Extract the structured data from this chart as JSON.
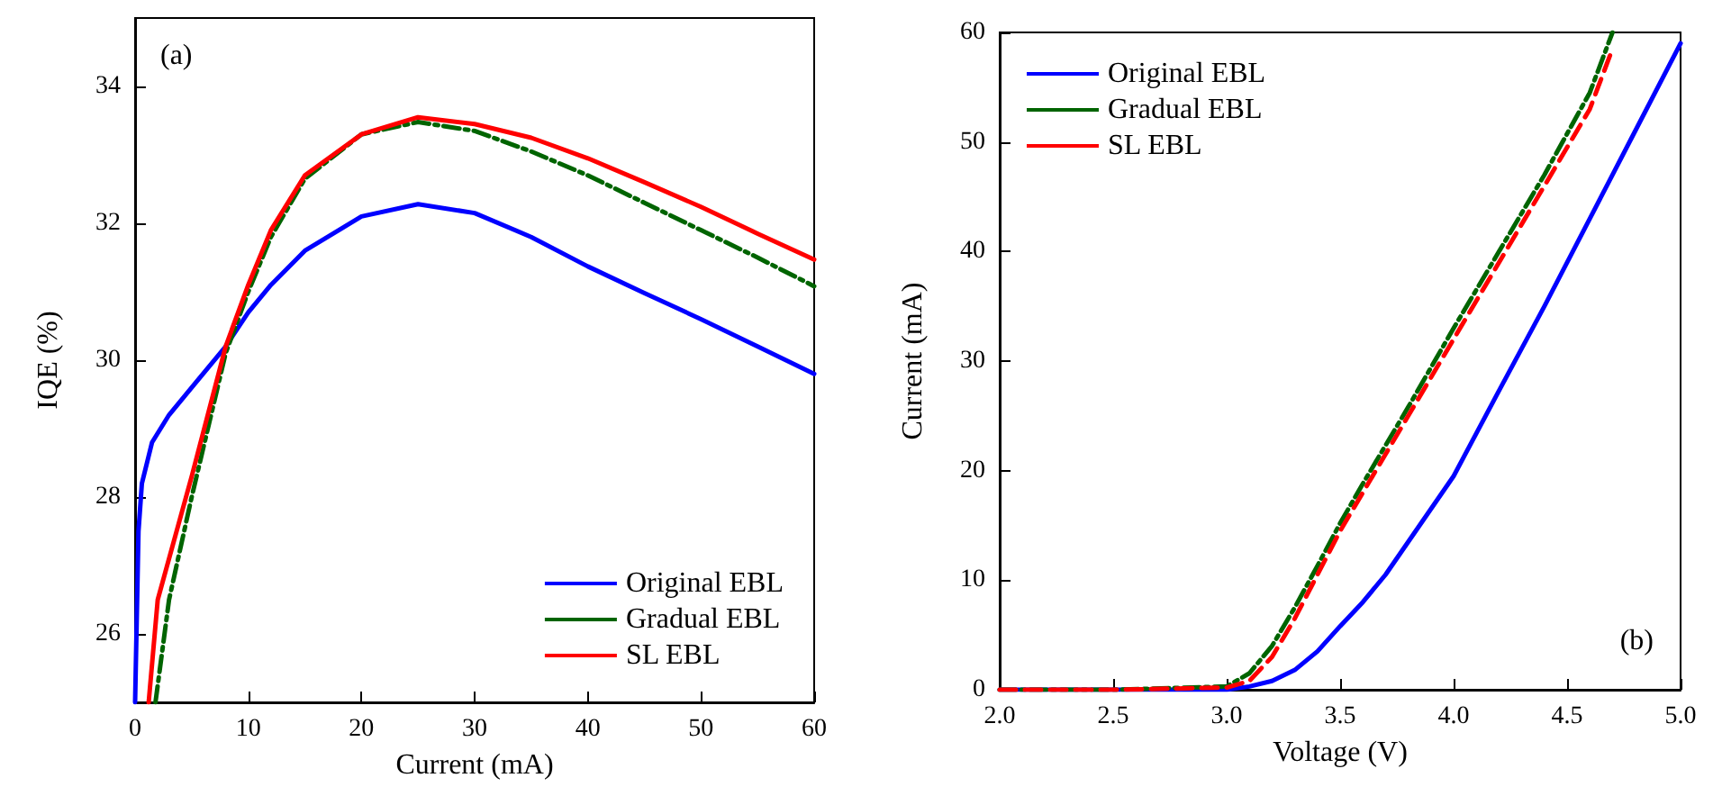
{
  "chart_data": [
    {
      "type": "line",
      "xlabel": "Current (mA)",
      "ylabel": "IQE (%)",
      "annotations": [
        "(a)"
      ],
      "xlim": [
        0,
        60
      ],
      "xticks": [
        0,
        10,
        20,
        30,
        40,
        50,
        60
      ],
      "ylim": [
        25,
        35
      ],
      "yticks": [
        26,
        28,
        30,
        32,
        34
      ],
      "grid": false,
      "legend": "bottom right",
      "marker": "none",
      "series": [
        {
          "name": "Original EBL",
          "color": "#0000ff",
          "line_style": "solid",
          "x": [
            0,
            0.3,
            0.6,
            1.5,
            3,
            5,
            8,
            10,
            12,
            15,
            20,
            25,
            30,
            35,
            40,
            45,
            50,
            55,
            60
          ],
          "values": [
            25,
            27.5,
            28.2,
            28.8,
            29.2,
            29.6,
            30.2,
            30.7,
            31.1,
            31.6,
            32.1,
            32.28,
            32.15,
            31.8,
            31.37,
            30.98,
            30.6,
            30.2,
            29.8
          ]
        },
        {
          "name": "Gradual EBL",
          "color": "#006400",
          "line_style": "dashdot",
          "x": [
            1.8,
            3,
            5,
            8,
            10,
            12,
            15,
            20,
            25,
            30,
            35,
            40,
            45,
            50,
            55,
            60
          ],
          "values": [
            25,
            26.5,
            28,
            30.1,
            31,
            31.8,
            32.65,
            33.3,
            33.48,
            33.35,
            33.05,
            32.7,
            32.3,
            31.9,
            31.5,
            31.08
          ]
        },
        {
          "name": "SL EBL",
          "color": "#ff0000",
          "line_style": "solid",
          "x": [
            1.2,
            2,
            5,
            8,
            10,
            12,
            15,
            20,
            25,
            30,
            35,
            40,
            45,
            50,
            55,
            60
          ],
          "values": [
            25,
            26.5,
            28.3,
            30.2,
            31.1,
            31.9,
            32.7,
            33.3,
            33.55,
            33.45,
            33.25,
            32.95,
            32.6,
            32.24,
            31.85,
            31.47
          ]
        }
      ]
    },
    {
      "type": "line",
      "xlabel": "Voltage (V)",
      "ylabel": "Current (mA)",
      "annotations": [
        "(b)"
      ],
      "xlim": [
        2.0,
        5.0
      ],
      "xticks": [
        {
          "value": 2,
          "label": "2.0"
        },
        {
          "value": 2.5,
          "label": "2.5"
        },
        {
          "value": 3,
          "label": "3.0"
        },
        {
          "value": 3.5,
          "label": "3.5"
        },
        {
          "value": 4,
          "label": "4.0"
        },
        {
          "value": 4.5,
          "label": "4.5"
        },
        {
          "value": 5,
          "label": "5.0"
        }
      ],
      "ylim": [
        0,
        60
      ],
      "yticks": [
        0,
        10,
        20,
        30,
        40,
        50,
        60
      ],
      "grid": false,
      "legend": "top left",
      "marker": "none",
      "series": [
        {
          "name": "Original EBL",
          "color": "#0000ff",
          "line_style": "solid",
          "x": [
            2.0,
            2.5,
            3.0,
            3.1,
            3.2,
            3.3,
            3.4,
            3.5,
            3.6,
            3.7,
            3.8,
            3.9,
            4.0,
            4.2,
            4.4,
            4.6,
            4.8,
            5.0
          ],
          "values": [
            0,
            0,
            0,
            0.3,
            0.8,
            1.8,
            3.5,
            5.8,
            8,
            10.5,
            13.5,
            16.5,
            19.5,
            27.3,
            35,
            43,
            51,
            59
          ]
        },
        {
          "name": "Gradual EBL",
          "color": "#006400",
          "line_style": "dashdot",
          "x": [
            2.0,
            2.5,
            3.0,
            3.1,
            3.2,
            3.3,
            3.4,
            3.5,
            3.6,
            3.8,
            4.0,
            4.2,
            4.4,
            4.6,
            4.7
          ],
          "values": [
            0,
            0,
            0.3,
            1.5,
            4,
            7.5,
            11.3,
            15.2,
            18.8,
            25.8,
            33,
            40,
            47,
            54.5,
            60
          ]
        },
        {
          "name": "SL EBL",
          "color": "#ff0000",
          "line_style": "dashed",
          "x": [
            2.0,
            2.5,
            3.0,
            3.1,
            3.2,
            3.3,
            3.4,
            3.5,
            3.6,
            3.8,
            4.0,
            4.2,
            4.4,
            4.6,
            4.7
          ],
          "values": [
            0,
            0,
            0.2,
            0.8,
            3,
            6.5,
            10.5,
            14.5,
            18,
            25,
            32,
            39,
            46,
            53,
            58.5
          ]
        }
      ]
    }
  ]
}
